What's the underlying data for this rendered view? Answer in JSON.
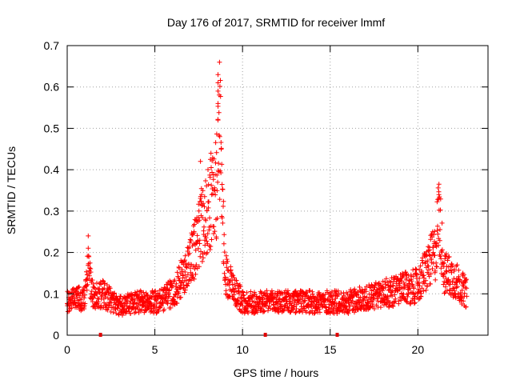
{
  "chart_data": {
    "type": "scatter",
    "title": "Day 176 of 2017, SRMTID for receiver lmmf",
    "xlabel": "GPS time / hours",
    "ylabel": "SRMTID / TECUs",
    "xlim": [
      0,
      24
    ],
    "ylim": [
      0,
      0.7
    ],
    "xticks": [
      0,
      5,
      10,
      15,
      20
    ],
    "yticks": [
      0,
      0.1,
      0.2,
      0.3,
      0.4,
      0.5,
      0.6,
      0.7
    ],
    "ytick_labels": [
      "0",
      "0.1",
      "0.2",
      "0.3",
      "0.4",
      "0.5",
      "0.6",
      "0.7"
    ],
    "grid": true,
    "marker": "+",
    "color": "#ff0000",
    "x_range_of_data": [
      0,
      22.8
    ],
    "data_gap_markers_x": [
      1.9,
      11.3,
      15.4
    ],
    "series_profile": [
      {
        "x": 0.0,
        "y": 0.08
      },
      {
        "x": 1.0,
        "y": 0.09
      },
      {
        "x": 1.2,
        "y": 0.16
      },
      {
        "x": 1.5,
        "y": 0.09
      },
      {
        "x": 2.0,
        "y": 0.1
      },
      {
        "x": 3.0,
        "y": 0.07
      },
      {
        "x": 4.0,
        "y": 0.08
      },
      {
        "x": 5.0,
        "y": 0.08
      },
      {
        "x": 6.0,
        "y": 0.1
      },
      {
        "x": 7.0,
        "y": 0.17
      },
      {
        "x": 7.6,
        "y": 0.26
      },
      {
        "x": 8.0,
        "y": 0.3
      },
      {
        "x": 8.5,
        "y": 0.35
      },
      {
        "x": 8.7,
        "y": 0.5
      },
      {
        "x": 9.0,
        "y": 0.15
      },
      {
        "x": 10.0,
        "y": 0.08
      },
      {
        "x": 12.0,
        "y": 0.08
      },
      {
        "x": 14.0,
        "y": 0.08
      },
      {
        "x": 16.0,
        "y": 0.08
      },
      {
        "x": 18.0,
        "y": 0.1
      },
      {
        "x": 20.0,
        "y": 0.12
      },
      {
        "x": 21.0,
        "y": 0.2
      },
      {
        "x": 21.2,
        "y": 0.3
      },
      {
        "x": 21.5,
        "y": 0.15
      },
      {
        "x": 22.0,
        "y": 0.14
      },
      {
        "x": 22.8,
        "y": 0.1
      }
    ],
    "notable_peaks": [
      {
        "x": 1.2,
        "y": 0.24
      },
      {
        "x": 8.6,
        "y": 0.63
      },
      {
        "x": 8.6,
        "y": 0.61
      },
      {
        "x": 8.6,
        "y": 0.59
      },
      {
        "x": 8.6,
        "y": 0.56
      },
      {
        "x": 8.6,
        "y": 0.52
      },
      {
        "x": 8.7,
        "y": 0.48
      },
      {
        "x": 8.2,
        "y": 0.44
      },
      {
        "x": 7.6,
        "y": 0.42
      },
      {
        "x": 21.2,
        "y": 0.34
      },
      {
        "x": 21.2,
        "y": 0.33
      }
    ]
  }
}
